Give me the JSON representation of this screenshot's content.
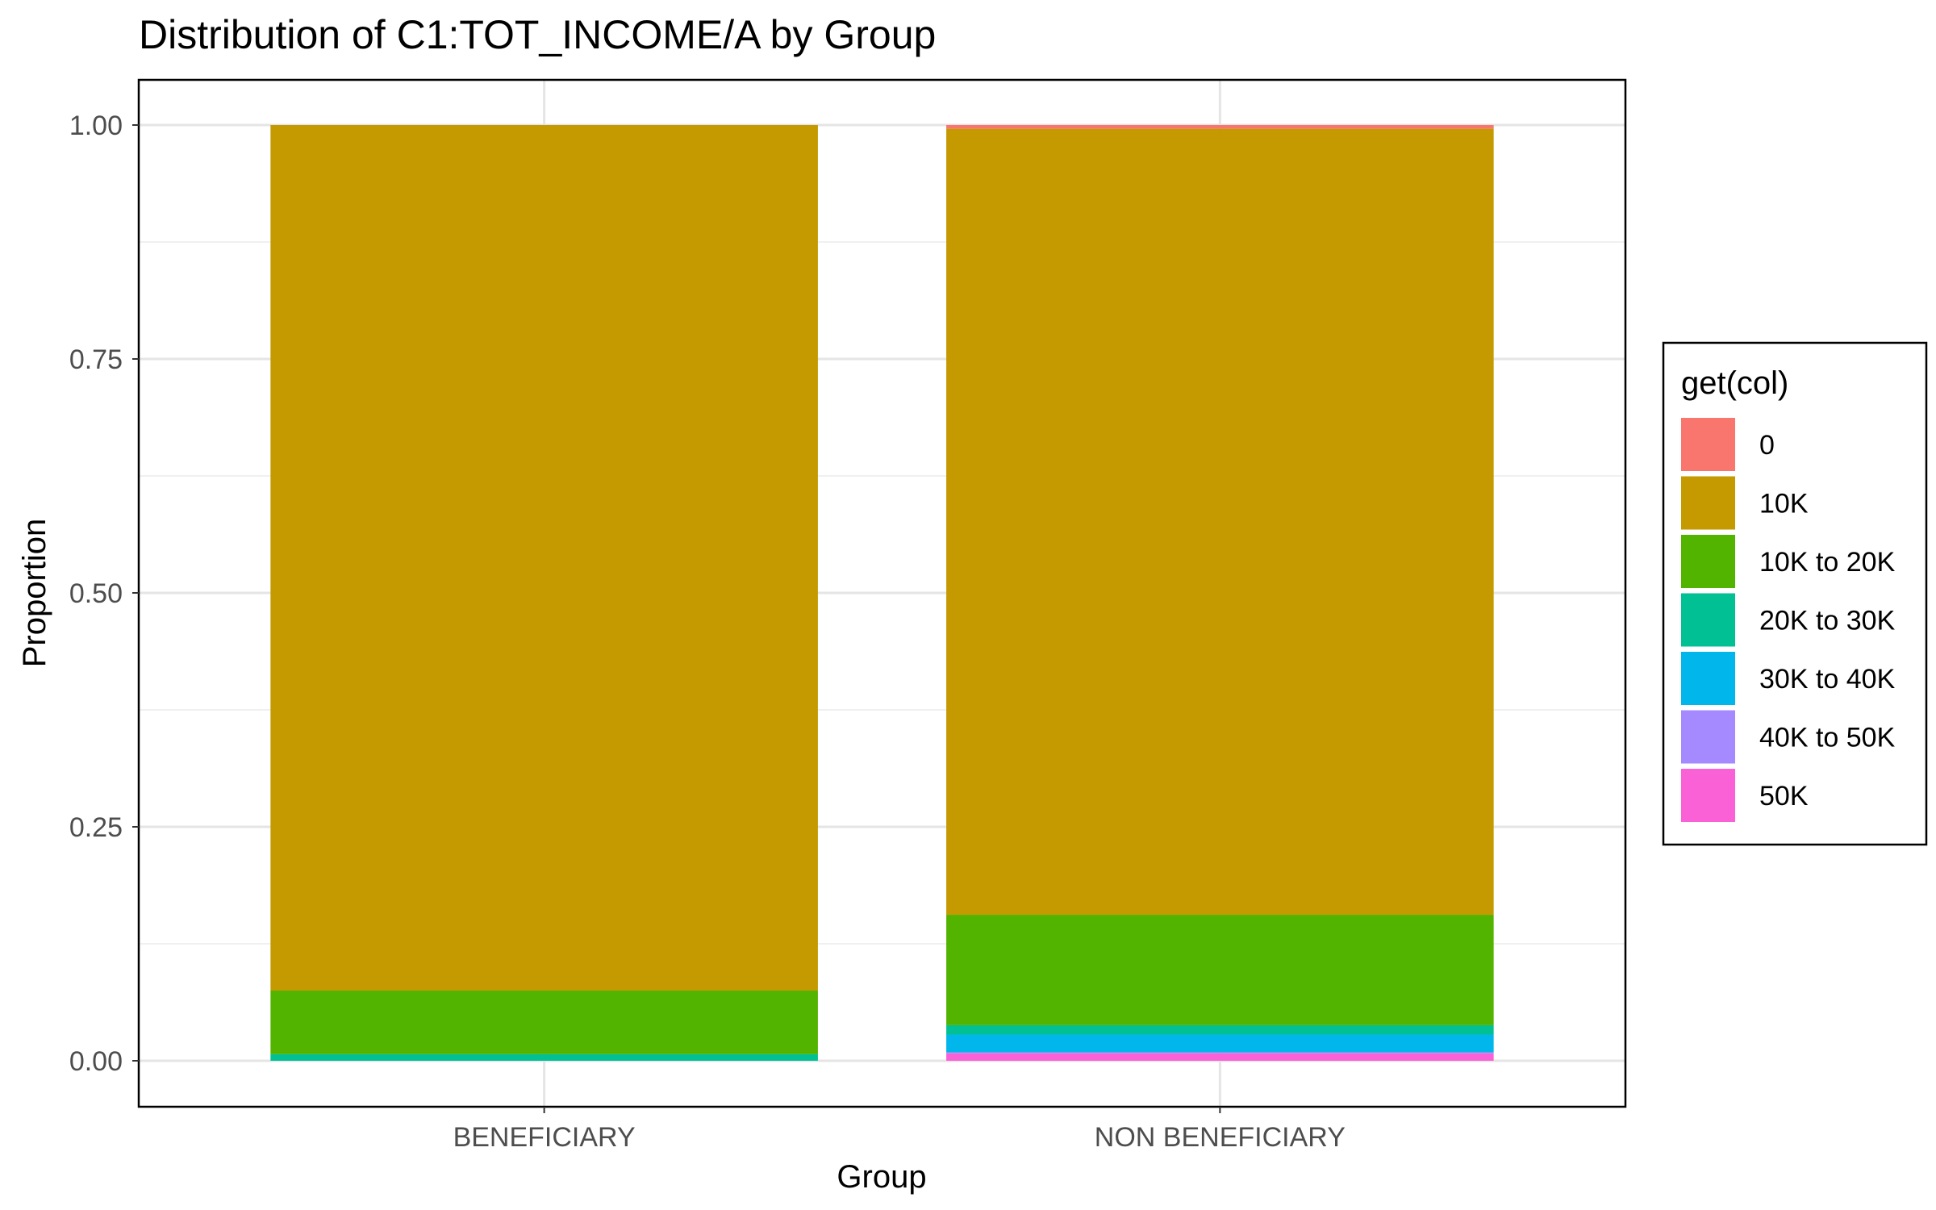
{
  "chart_data": {
    "type": "bar",
    "stacked": true,
    "title": "Distribution of C1:TOT_INCOME/A by Group",
    "xlabel": "Group",
    "ylabel": "Proportion",
    "ylim": [
      0,
      1.05
    ],
    "yticks": [
      "0.00",
      "0.25",
      "0.50",
      "0.75",
      "1.00"
    ],
    "grid": true,
    "legend_position": "right",
    "legend_title": "get(col)",
    "categories": [
      "BENEFICIARY",
      "NON BENEFICIARY"
    ],
    "series": [
      {
        "name": "0",
        "color": "#F8766D",
        "values": [
          0.0,
          0.004
        ]
      },
      {
        "name": "10K",
        "color": "#C49A00",
        "values": [
          0.925,
          0.84
        ]
      },
      {
        "name": "10K to 20K",
        "color": "#53B400",
        "values": [
          0.068,
          0.118
        ]
      },
      {
        "name": "20K to 30K",
        "color": "#00C094",
        "values": [
          0.007,
          0.01
        ]
      },
      {
        "name": "30K to 40K",
        "color": "#00B6EB",
        "values": [
          0.0,
          0.019
        ]
      },
      {
        "name": "40K to 50K",
        "color": "#A58AFF",
        "values": [
          0.0,
          0.001
        ]
      },
      {
        "name": "50K",
        "color": "#FB61D7",
        "values": [
          0.0,
          0.008
        ]
      }
    ]
  }
}
